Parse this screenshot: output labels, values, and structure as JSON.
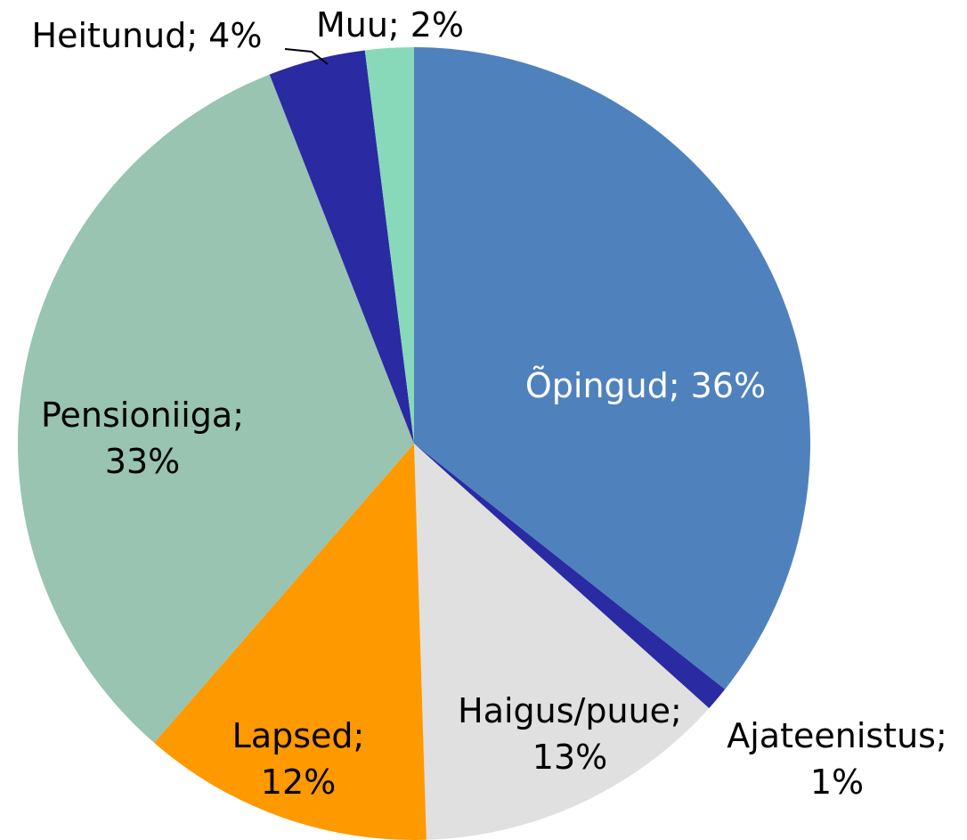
{
  "chart_data": {
    "type": "pie",
    "categories": [
      "Õpingud;",
      "Ajateenistus;",
      "Haigus/puue;",
      "Lapsed;",
      "Pensioniiga;",
      "Heitunud;",
      "Muu;"
    ],
    "values": [
      36,
      1,
      13,
      12,
      33,
      4,
      2
    ],
    "value_labels": [
      "36%",
      "1%",
      "13%",
      "12%",
      "33%",
      "4%",
      "2%"
    ],
    "colors": [
      "#4f81bd",
      "#2a2aa3",
      "#e0e0e0",
      "#ff9900",
      "#98c4b1",
      "#2a2aa3",
      "#88d9b9"
    ]
  }
}
